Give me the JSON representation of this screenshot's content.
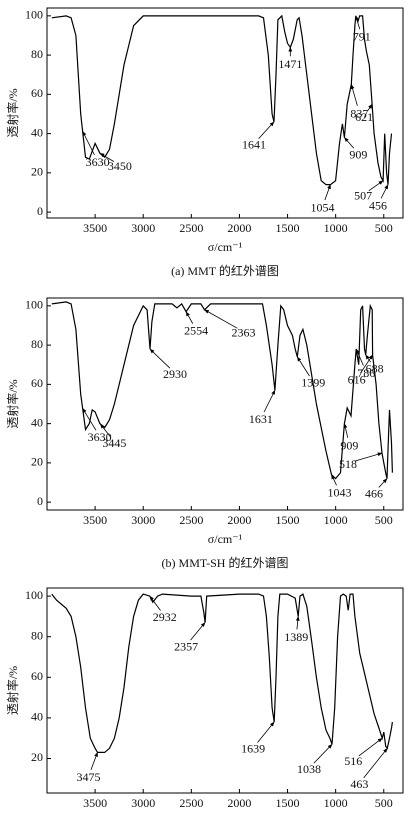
{
  "chart_data": [
    {
      "type": "line",
      "xlabel": "σ/cm⁻¹",
      "ylabel": "透射率/%",
      "caption": "(a) MMT 的红外谱图",
      "color": "#000000",
      "xlim": [
        4000,
        300
      ],
      "ylim": [
        -3,
        104
      ],
      "xticks": [
        3500,
        3000,
        2500,
        2000,
        1500,
        1000,
        500
      ],
      "yticks": [
        0,
        20,
        40,
        60,
        80,
        100
      ],
      "x": [
        3950,
        3800,
        3750,
        3700,
        3650,
        3600,
        3560,
        3500,
        3450,
        3400,
        3350,
        3300,
        3200,
        3100,
        3000,
        2500,
        2000,
        1800,
        1750,
        1700,
        1660,
        1641,
        1620,
        1600,
        1560,
        1530,
        1500,
        1471,
        1440,
        1400,
        1380,
        1350,
        1300,
        1250,
        1200,
        1150,
        1100,
        1054,
        1000,
        960,
        930,
        909,
        880,
        837,
        820,
        800,
        791,
        770,
        750,
        720,
        700,
        680,
        650,
        621,
        600,
        560,
        530,
        507,
        490,
        470,
        456,
        440,
        420
      ],
      "values": [
        99,
        100,
        99,
        90,
        50,
        28,
        27,
        35,
        30,
        28,
        32,
        45,
        75,
        95,
        100,
        100,
        100,
        100,
        99,
        80,
        50,
        46,
        70,
        98,
        100,
        92,
        86,
        84,
        88,
        98,
        99,
        90,
        70,
        50,
        30,
        16,
        14,
        14,
        16,
        35,
        45,
        38,
        55,
        65,
        80,
        95,
        100,
        97,
        100,
        100,
        88,
        82,
        75,
        55,
        40,
        25,
        18,
        16,
        40,
        20,
        14,
        30,
        40
      ],
      "annotations": [
        3630,
        3450,
        1641,
        1471,
        1054,
        909,
        837,
        621,
        791,
        507,
        456
      ]
    },
    {
      "type": "line",
      "xlabel": "σ/cm⁻¹",
      "ylabel": "透射率/%",
      "caption": "(b) MMT-SH 的红外谱图",
      "color": "#000000",
      "xlim": [
        4000,
        300
      ],
      "ylim": [
        -4,
        104
      ],
      "xticks": [
        3500,
        3000,
        2500,
        2000,
        1500,
        1000,
        500
      ],
      "yticks": [
        0,
        20,
        40,
        60,
        80,
        100
      ],
      "x": [
        3950,
        3800,
        3750,
        3700,
        3650,
        3600,
        3560,
        3530,
        3500,
        3450,
        3400,
        3350,
        3300,
        3200,
        3100,
        3000,
        2960,
        2940,
        2930,
        2910,
        2880,
        2800,
        2700,
        2650,
        2600,
        2554,
        2500,
        2400,
        2363,
        2300,
        2000,
        1800,
        1760,
        1720,
        1660,
        1631,
        1600,
        1570,
        1540,
        1500,
        1450,
        1420,
        1399,
        1370,
        1340,
        1300,
        1250,
        1200,
        1150,
        1100,
        1043,
        1000,
        950,
        909,
        880,
        840,
        800,
        786,
        760,
        740,
        720,
        700,
        688,
        670,
        640,
        620,
        616,
        580,
        550,
        518,
        500,
        480,
        466,
        450,
        440,
        420,
        410
      ],
      "values": [
        101,
        102,
        101,
        88,
        55,
        37,
        40,
        47,
        46,
        40,
        38,
        42,
        50,
        70,
        90,
        100,
        98,
        85,
        78,
        92,
        101,
        101,
        101,
        99,
        101,
        97,
        101,
        101,
        98,
        101,
        101,
        101,
        101,
        90,
        70,
        57,
        80,
        100,
        98,
        90,
        85,
        78,
        74,
        85,
        88,
        80,
        65,
        50,
        38,
        26,
        14,
        12,
        15,
        40,
        48,
        44,
        70,
        78,
        70,
        98,
        100,
        78,
        75,
        85,
        100,
        98,
        75,
        60,
        40,
        25,
        20,
        15,
        12,
        35,
        47,
        30,
        15
      ],
      "annotations": [
        3630,
        3445,
        2930,
        2554,
        2363,
        1631,
        1399,
        909,
        1043,
        786,
        688,
        616,
        518,
        466
      ]
    },
    {
      "type": "line",
      "ylabel": "透射率/%",
      "color": "#000000",
      "xlim": [
        4000,
        300
      ],
      "ylim": [
        3,
        104
      ],
      "xticks": [
        3500,
        3000,
        2500,
        2000,
        1500,
        1000,
        500
      ],
      "yticks": [
        20,
        40,
        60,
        80,
        100
      ],
      "x": [
        3950,
        3900,
        3800,
        3750,
        3700,
        3650,
        3600,
        3550,
        3500,
        3475,
        3400,
        3350,
        3300,
        3250,
        3200,
        3150,
        3100,
        3050,
        3000,
        2932,
        2900,
        2850,
        2800,
        2500,
        2400,
        2370,
        2357,
        2340,
        2000,
        1800,
        1750,
        1720,
        1690,
        1660,
        1639,
        1620,
        1600,
        1580,
        1500,
        1420,
        1389,
        1370,
        1340,
        1300,
        1250,
        1200,
        1150,
        1100,
        1060,
        1038,
        1010,
        980,
        950,
        920,
        890,
        870,
        850,
        820,
        800,
        750,
        700,
        650,
        600,
        550,
        516,
        500,
        480,
        463,
        440,
        420,
        410
      ],
      "values": [
        101,
        98,
        94,
        90,
        80,
        65,
        45,
        30,
        25,
        23,
        23,
        25,
        30,
        40,
        55,
        75,
        90,
        98,
        101,
        100,
        97,
        100,
        101,
        100,
        100,
        92,
        87,
        100,
        101,
        101,
        100,
        90,
        70,
        45,
        38,
        60,
        90,
        101,
        101,
        99,
        90,
        100,
        101,
        95,
        78,
        60,
        45,
        34,
        30,
        27,
        45,
        80,
        100,
        101,
        100,
        93,
        101,
        101,
        90,
        72,
        62,
        52,
        42,
        35,
        30,
        33,
        26,
        25,
        30,
        35,
        38
      ],
      "annotations": [
        3475,
        2932,
        2357,
        1389,
        1639,
        1038,
        516,
        463
      ]
    }
  ]
}
